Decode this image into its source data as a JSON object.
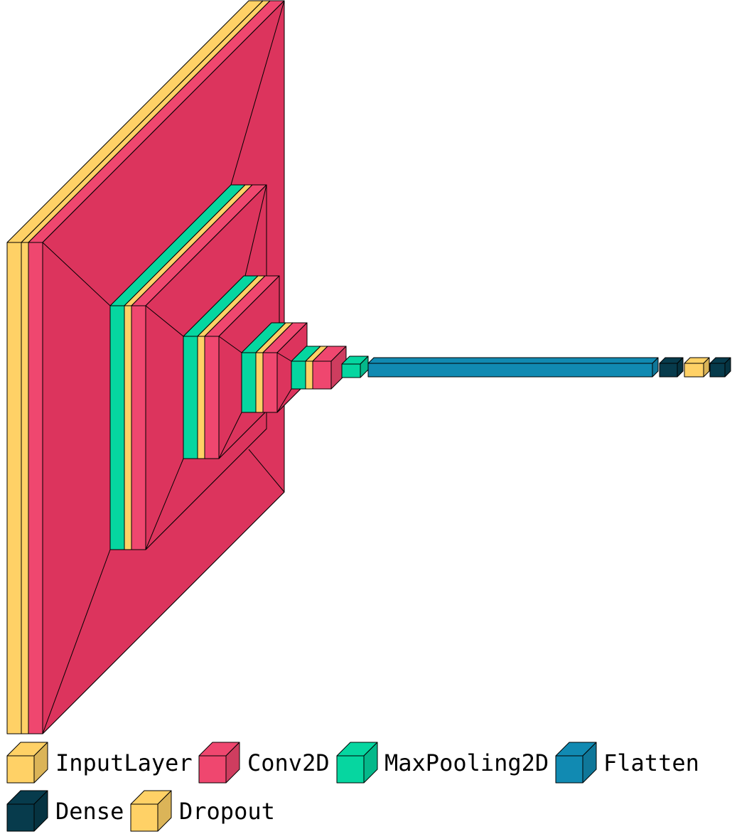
{
  "colors": {
    "InputLayer": "#ffd166",
    "Conv2D": "#ef476f",
    "MaxPooling2D": "#06d6a0",
    "Flatten": "#118ab2",
    "Dense": "#073b4c",
    "Dropout": "#ffd166",
    "ConvBody": "#dc345d"
  },
  "layers": [
    {
      "type": "InputLayer"
    },
    {
      "type": "Dropout"
    },
    {
      "type": "Conv2D"
    },
    {
      "type": "MaxPooling2D"
    },
    {
      "type": "Dropout"
    },
    {
      "type": "Conv2D"
    },
    {
      "type": "MaxPooling2D"
    },
    {
      "type": "Dropout"
    },
    {
      "type": "Conv2D"
    },
    {
      "type": "MaxPooling2D"
    },
    {
      "type": "Dropout"
    },
    {
      "type": "Conv2D"
    },
    {
      "type": "MaxPooling2D"
    },
    {
      "type": "Dropout"
    },
    {
      "type": "Conv2D"
    },
    {
      "type": "MaxPooling2D"
    },
    {
      "type": "Flatten"
    },
    {
      "type": "Dense"
    },
    {
      "type": "Dropout"
    },
    {
      "type": "Dense"
    }
  ],
  "legend": {
    "items": [
      {
        "label": "InputLayer",
        "type": "InputLayer"
      },
      {
        "label": "Conv2D",
        "type": "Conv2D"
      },
      {
        "label": "MaxPooling2D",
        "type": "MaxPooling2D"
      },
      {
        "label": "Flatten",
        "type": "Flatten"
      },
      {
        "label": "Dense",
        "type": "Dense"
      },
      {
        "label": "Dropout",
        "type": "Dropout"
      }
    ]
  }
}
